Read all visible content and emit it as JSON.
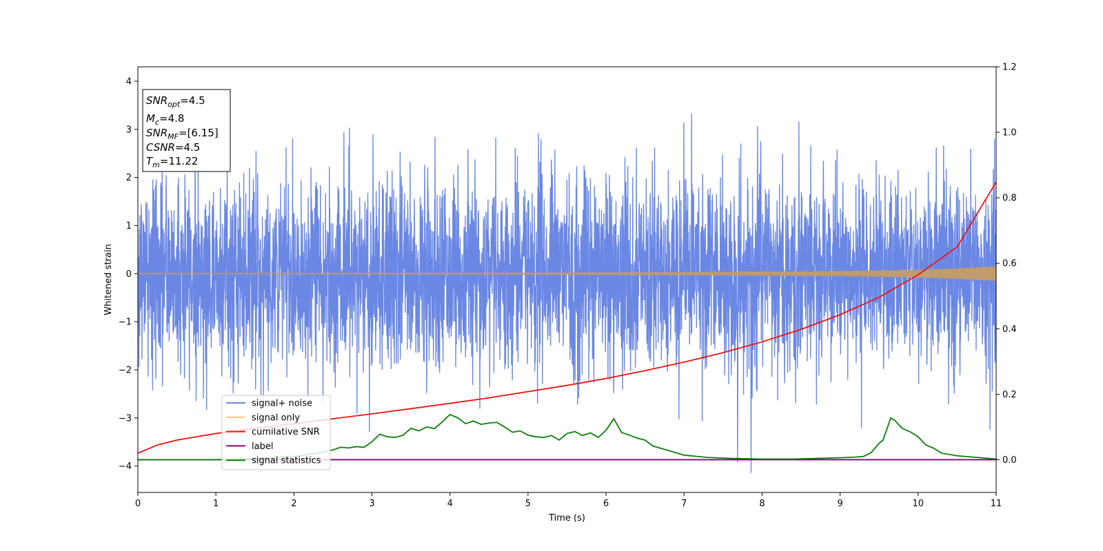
{
  "chart_data": {
    "type": "line",
    "xlabel": "Time (s)",
    "ylabel": "Whitened strain",
    "xlim": [
      0,
      11
    ],
    "ylim_left": [
      -4.55,
      4.3
    ],
    "ylim_right": [
      -0.1,
      1.2
    ],
    "x_ticks": [
      0,
      1,
      2,
      3,
      4,
      5,
      6,
      7,
      8,
      9,
      10,
      11
    ],
    "y_ticks_left": [
      -4,
      -3,
      -2,
      -1,
      0,
      1,
      2,
      3,
      4
    ],
    "y_ticks_right": [
      0.0,
      0.2,
      0.4,
      0.6,
      0.8,
      1.0,
      1.2
    ],
    "x_tick_labels": [
      "0",
      "1",
      "2",
      "3",
      "4",
      "5",
      "6",
      "7",
      "8",
      "9",
      "10",
      "11"
    ],
    "y_tick_labels_left": [
      "−4",
      "−3",
      "−2",
      "−1",
      "0",
      "1",
      "2",
      "3",
      "4"
    ],
    "y_tick_labels_right": [
      "0.0",
      "0.2",
      "0.4",
      "0.6",
      "0.8",
      "1.0",
      "1.2"
    ],
    "legend_position": "lower-left",
    "info_box": {
      "snr_opt": {
        "sym": "SNR",
        "sub": "opt",
        "val": "=4.5"
      },
      "mc": {
        "sym": "M",
        "sub": "c",
        "val": "=4.8"
      },
      "snr_mf": {
        "sym": "SNR",
        "sub": "MF",
        "val": "=[6.15]"
      },
      "csnr": {
        "sym": "CSNR",
        "sub": "",
        "val": "=4.5"
      },
      "tm": {
        "sym": "T",
        "sub": "m",
        "val": "=11.22"
      }
    },
    "series": [
      {
        "name": "signal+ noise",
        "color": "#6a87e4",
        "axis": "left",
        "kind": "noise",
        "sigma": 1.0,
        "x_range": [
          0,
          11
        ]
      },
      {
        "name": "signal only",
        "color": "#f5c57a",
        "axis": "left",
        "kind": "chirp",
        "envelope": {
          "x": [
            0,
            3,
            5,
            7,
            8,
            9,
            10,
            10.5,
            11
          ],
          "y": [
            0.01,
            0.012,
            0.016,
            0.025,
            0.035,
            0.05,
            0.08,
            0.11,
            0.16
          ]
        }
      },
      {
        "name": "cumilative SNR",
        "color": "#ee1111",
        "axis": "right",
        "x": [
          0,
          0.25,
          0.5,
          1,
          1.5,
          2,
          2.5,
          3,
          3.5,
          4,
          4.5,
          5,
          5.5,
          6,
          6.5,
          7,
          7.5,
          8,
          8.5,
          9,
          9.5,
          10,
          10.5,
          11
        ],
        "y": [
          0.02,
          0.045,
          0.06,
          0.08,
          0.096,
          0.11,
          0.125,
          0.14,
          0.156,
          0.172,
          0.189,
          0.208,
          0.227,
          0.248,
          0.272,
          0.298,
          0.327,
          0.36,
          0.398,
          0.443,
          0.496,
          0.565,
          0.65,
          0.848
        ]
      },
      {
        "name": "label",
        "color": "#800080",
        "axis": "right",
        "x": [
          0,
          11
        ],
        "y": [
          0.0,
          0.0
        ]
      },
      {
        "name": "signal statistics",
        "color": "#087f08",
        "axis": "right",
        "x": [
          0,
          1,
          1.5,
          2.0,
          2.3,
          2.5,
          2.6,
          2.7,
          2.8,
          2.9,
          3.0,
          3.1,
          3.2,
          3.3,
          3.4,
          3.5,
          3.6,
          3.7,
          3.8,
          3.9,
          4.0,
          4.1,
          4.2,
          4.3,
          4.4,
          4.5,
          4.6,
          4.7,
          4.8,
          4.9,
          5.0,
          5.1,
          5.2,
          5.3,
          5.4,
          5.5,
          5.6,
          5.7,
          5.8,
          5.9,
          6.0,
          6.1,
          6.2,
          6.3,
          6.4,
          6.5,
          6.6,
          6.8,
          7.0,
          7.3,
          7.6,
          8.0,
          8.4,
          8.7,
          9.0,
          9.2,
          9.3,
          9.4,
          9.5,
          9.55,
          9.65,
          9.7,
          9.8,
          9.9,
          10.0,
          10.1,
          10.2,
          10.3,
          10.5,
          10.7,
          10.9,
          11.0
        ],
        "y": [
          0.0,
          0.0,
          0.004,
          0.01,
          0.02,
          0.03,
          0.038,
          0.036,
          0.04,
          0.038,
          0.055,
          0.078,
          0.07,
          0.068,
          0.075,
          0.096,
          0.088,
          0.1,
          0.095,
          0.115,
          0.138,
          0.128,
          0.11,
          0.118,
          0.108,
          0.112,
          0.114,
          0.1,
          0.084,
          0.088,
          0.075,
          0.07,
          0.068,
          0.074,
          0.06,
          0.08,
          0.086,
          0.074,
          0.082,
          0.068,
          0.09,
          0.125,
          0.083,
          0.075,
          0.066,
          0.06,
          0.042,
          0.028,
          0.014,
          0.007,
          0.004,
          0.002,
          0.002,
          0.004,
          0.006,
          0.008,
          0.01,
          0.022,
          0.05,
          0.06,
          0.128,
          0.12,
          0.095,
          0.085,
          0.07,
          0.045,
          0.035,
          0.02,
          0.012,
          0.008,
          0.004,
          0.002
        ]
      }
    ]
  }
}
